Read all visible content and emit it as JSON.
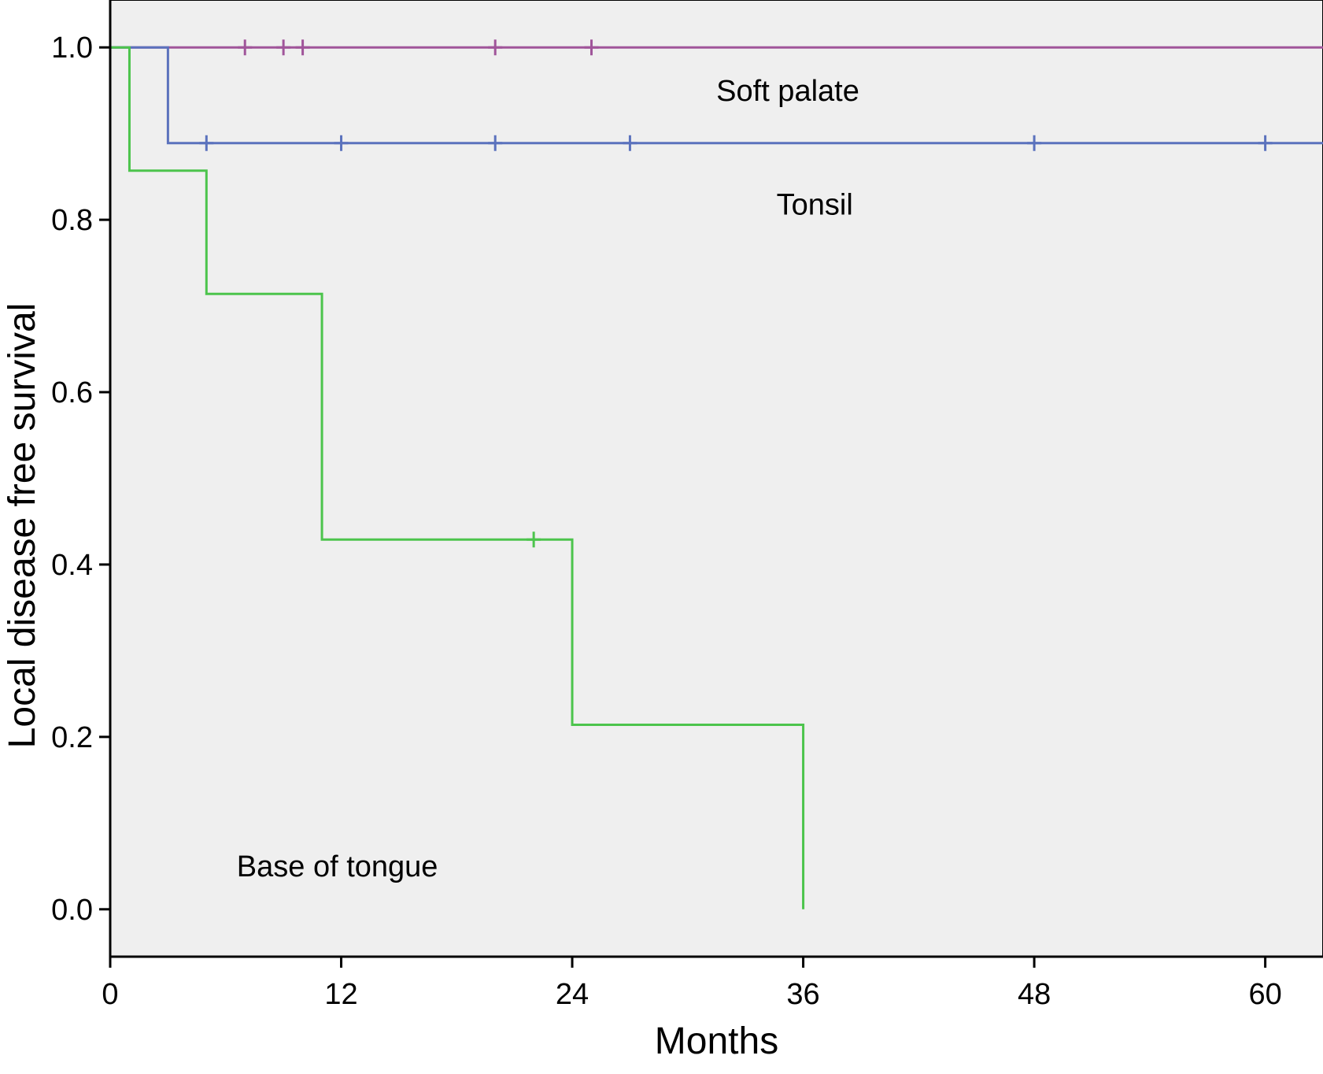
{
  "chart_data": {
    "type": "line",
    "xlabel": "Months",
    "ylabel": "Local disease free survival",
    "xlim": [
      0,
      63
    ],
    "ylim": [
      -0.055,
      1.055
    ],
    "xticks": [
      0,
      12,
      24,
      36,
      48,
      60
    ],
    "xtick_labels": [
      "0",
      "12",
      "24",
      "36",
      "48",
      "60"
    ],
    "yticks": [
      0.0,
      0.2,
      0.4,
      0.6,
      0.8,
      1.0
    ],
    "ytick_labels": [
      "0.0",
      "0.2",
      "0.4",
      "0.6",
      "0.8",
      "1.0"
    ],
    "grid": false,
    "plot_background": "#efefef",
    "series": [
      {
        "name": "Soft palate",
        "color": "#a0559a",
        "steps": [
          [
            0,
            1.0
          ],
          [
            63,
            1.0
          ]
        ],
        "censored": [
          [
            7,
            1.0
          ],
          [
            9,
            1.0
          ],
          [
            10,
            1.0
          ],
          [
            20,
            1.0
          ],
          [
            25,
            1.0
          ]
        ],
        "label_anchor": [
          35.2,
          0.95
        ]
      },
      {
        "name": "Tonsil",
        "color": "#5b72bd",
        "steps": [
          [
            0,
            1.0
          ],
          [
            3,
            1.0
          ],
          [
            3,
            0.889
          ],
          [
            63,
            0.889
          ]
        ],
        "censored": [
          [
            5,
            0.889
          ],
          [
            12,
            0.889
          ],
          [
            20,
            0.889
          ],
          [
            27,
            0.889
          ],
          [
            48,
            0.889
          ],
          [
            60,
            0.889
          ]
        ],
        "label_anchor": [
          36.6,
          0.818
        ]
      },
      {
        "name": "Base of tongue",
        "color": "#4cc44c",
        "steps": [
          [
            0,
            1.0
          ],
          [
            1,
            1.0
          ],
          [
            1,
            0.857
          ],
          [
            5,
            0.857
          ],
          [
            5,
            0.714
          ],
          [
            11,
            0.714
          ],
          [
            11,
            0.429
          ],
          [
            24,
            0.429
          ],
          [
            24,
            0.214
          ],
          [
            36,
            0.214
          ],
          [
            36,
            0.0
          ]
        ],
        "censored": [
          [
            22,
            0.429
          ]
        ],
        "label_anchor": [
          11.8,
          0.05
        ]
      }
    ]
  }
}
